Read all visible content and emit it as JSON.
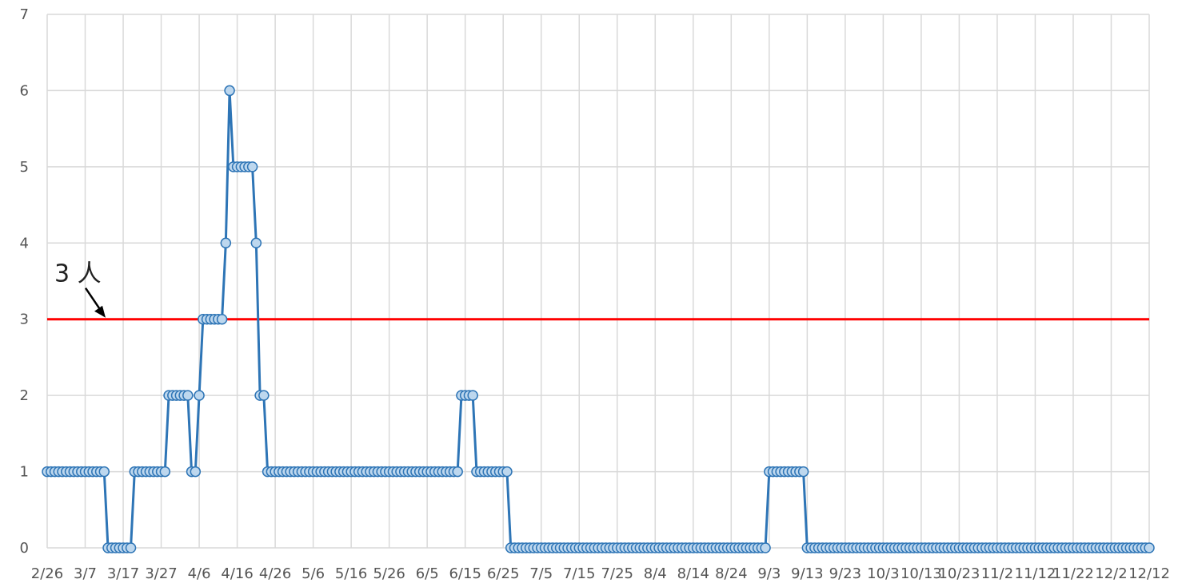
{
  "chart_data": {
    "type": "line",
    "title": "",
    "xlabel": "",
    "ylabel": "",
    "ylim": [
      0,
      7
    ],
    "yticks": [
      0,
      1,
      2,
      3,
      4,
      5,
      6,
      7
    ],
    "grid": true,
    "legend": "none",
    "xtick_labels": [
      "2/26",
      "3/7",
      "3/17",
      "3/27",
      "4/6",
      "4/16",
      "4/26",
      "5/6",
      "5/16",
      "5/26",
      "6/5",
      "6/15",
      "6/25",
      "7/5",
      "7/15",
      "7/25",
      "8/4",
      "8/14",
      "8/24",
      "9/3",
      "9/13",
      "9/23",
      "10/3",
      "10/13",
      "10/23",
      "11/2",
      "11/12",
      "11/22",
      "12/2",
      "12/12"
    ],
    "series": [
      {
        "color": "#2E75B6",
        "marker_fill": "#BDD7EE",
        "segments": [
          {
            "from": "2/26",
            "to": "3/12",
            "value": 1
          },
          {
            "from": "3/13",
            "to": "3/19",
            "value": 0
          },
          {
            "from": "3/20",
            "to": "3/28",
            "value": 1
          },
          {
            "from": "3/29",
            "to": "4/3",
            "value": 2
          },
          {
            "from": "4/4",
            "to": "4/5",
            "value": 1
          },
          {
            "from": "4/6",
            "to": "4/6",
            "value": 2
          },
          {
            "from": "4/7",
            "to": "4/12",
            "value": 3
          },
          {
            "from": "4/13",
            "to": "4/13",
            "value": 4
          },
          {
            "from": "4/14",
            "to": "4/14",
            "value": 6
          },
          {
            "from": "4/15",
            "to": "4/20",
            "value": 5
          },
          {
            "from": "4/21",
            "to": "4/21",
            "value": 4
          },
          {
            "from": "4/22",
            "to": "4/23",
            "value": 2
          },
          {
            "from": "4/24",
            "to": "6/13",
            "value": 1
          },
          {
            "from": "6/14",
            "to": "6/17",
            "value": 2
          },
          {
            "from": "6/18",
            "to": "6/26",
            "value": 1
          },
          {
            "from": "6/27",
            "to": "9/2",
            "value": 0
          },
          {
            "from": "9/3",
            "to": "9/12",
            "value": 1
          },
          {
            "from": "9/13",
            "to": "12/12",
            "value": 0
          }
        ]
      }
    ],
    "reference_line": {
      "value": 3,
      "color": "#FF0000"
    },
    "annotations": [
      {
        "text": "3 人",
        "points_to": 3
      }
    ]
  }
}
